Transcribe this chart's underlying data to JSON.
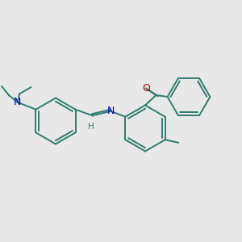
{
  "bg_color": "#e8e8e8",
  "bond_color": "#2d7d6e",
  "N_color": "#0000cc",
  "O_color": "#cc0000",
  "C_color": "#2d7d6e",
  "text_color": "#2d7d6e",
  "lw": 1.4,
  "xlim": [
    0,
    10
  ],
  "ylim": [
    0,
    10
  ]
}
